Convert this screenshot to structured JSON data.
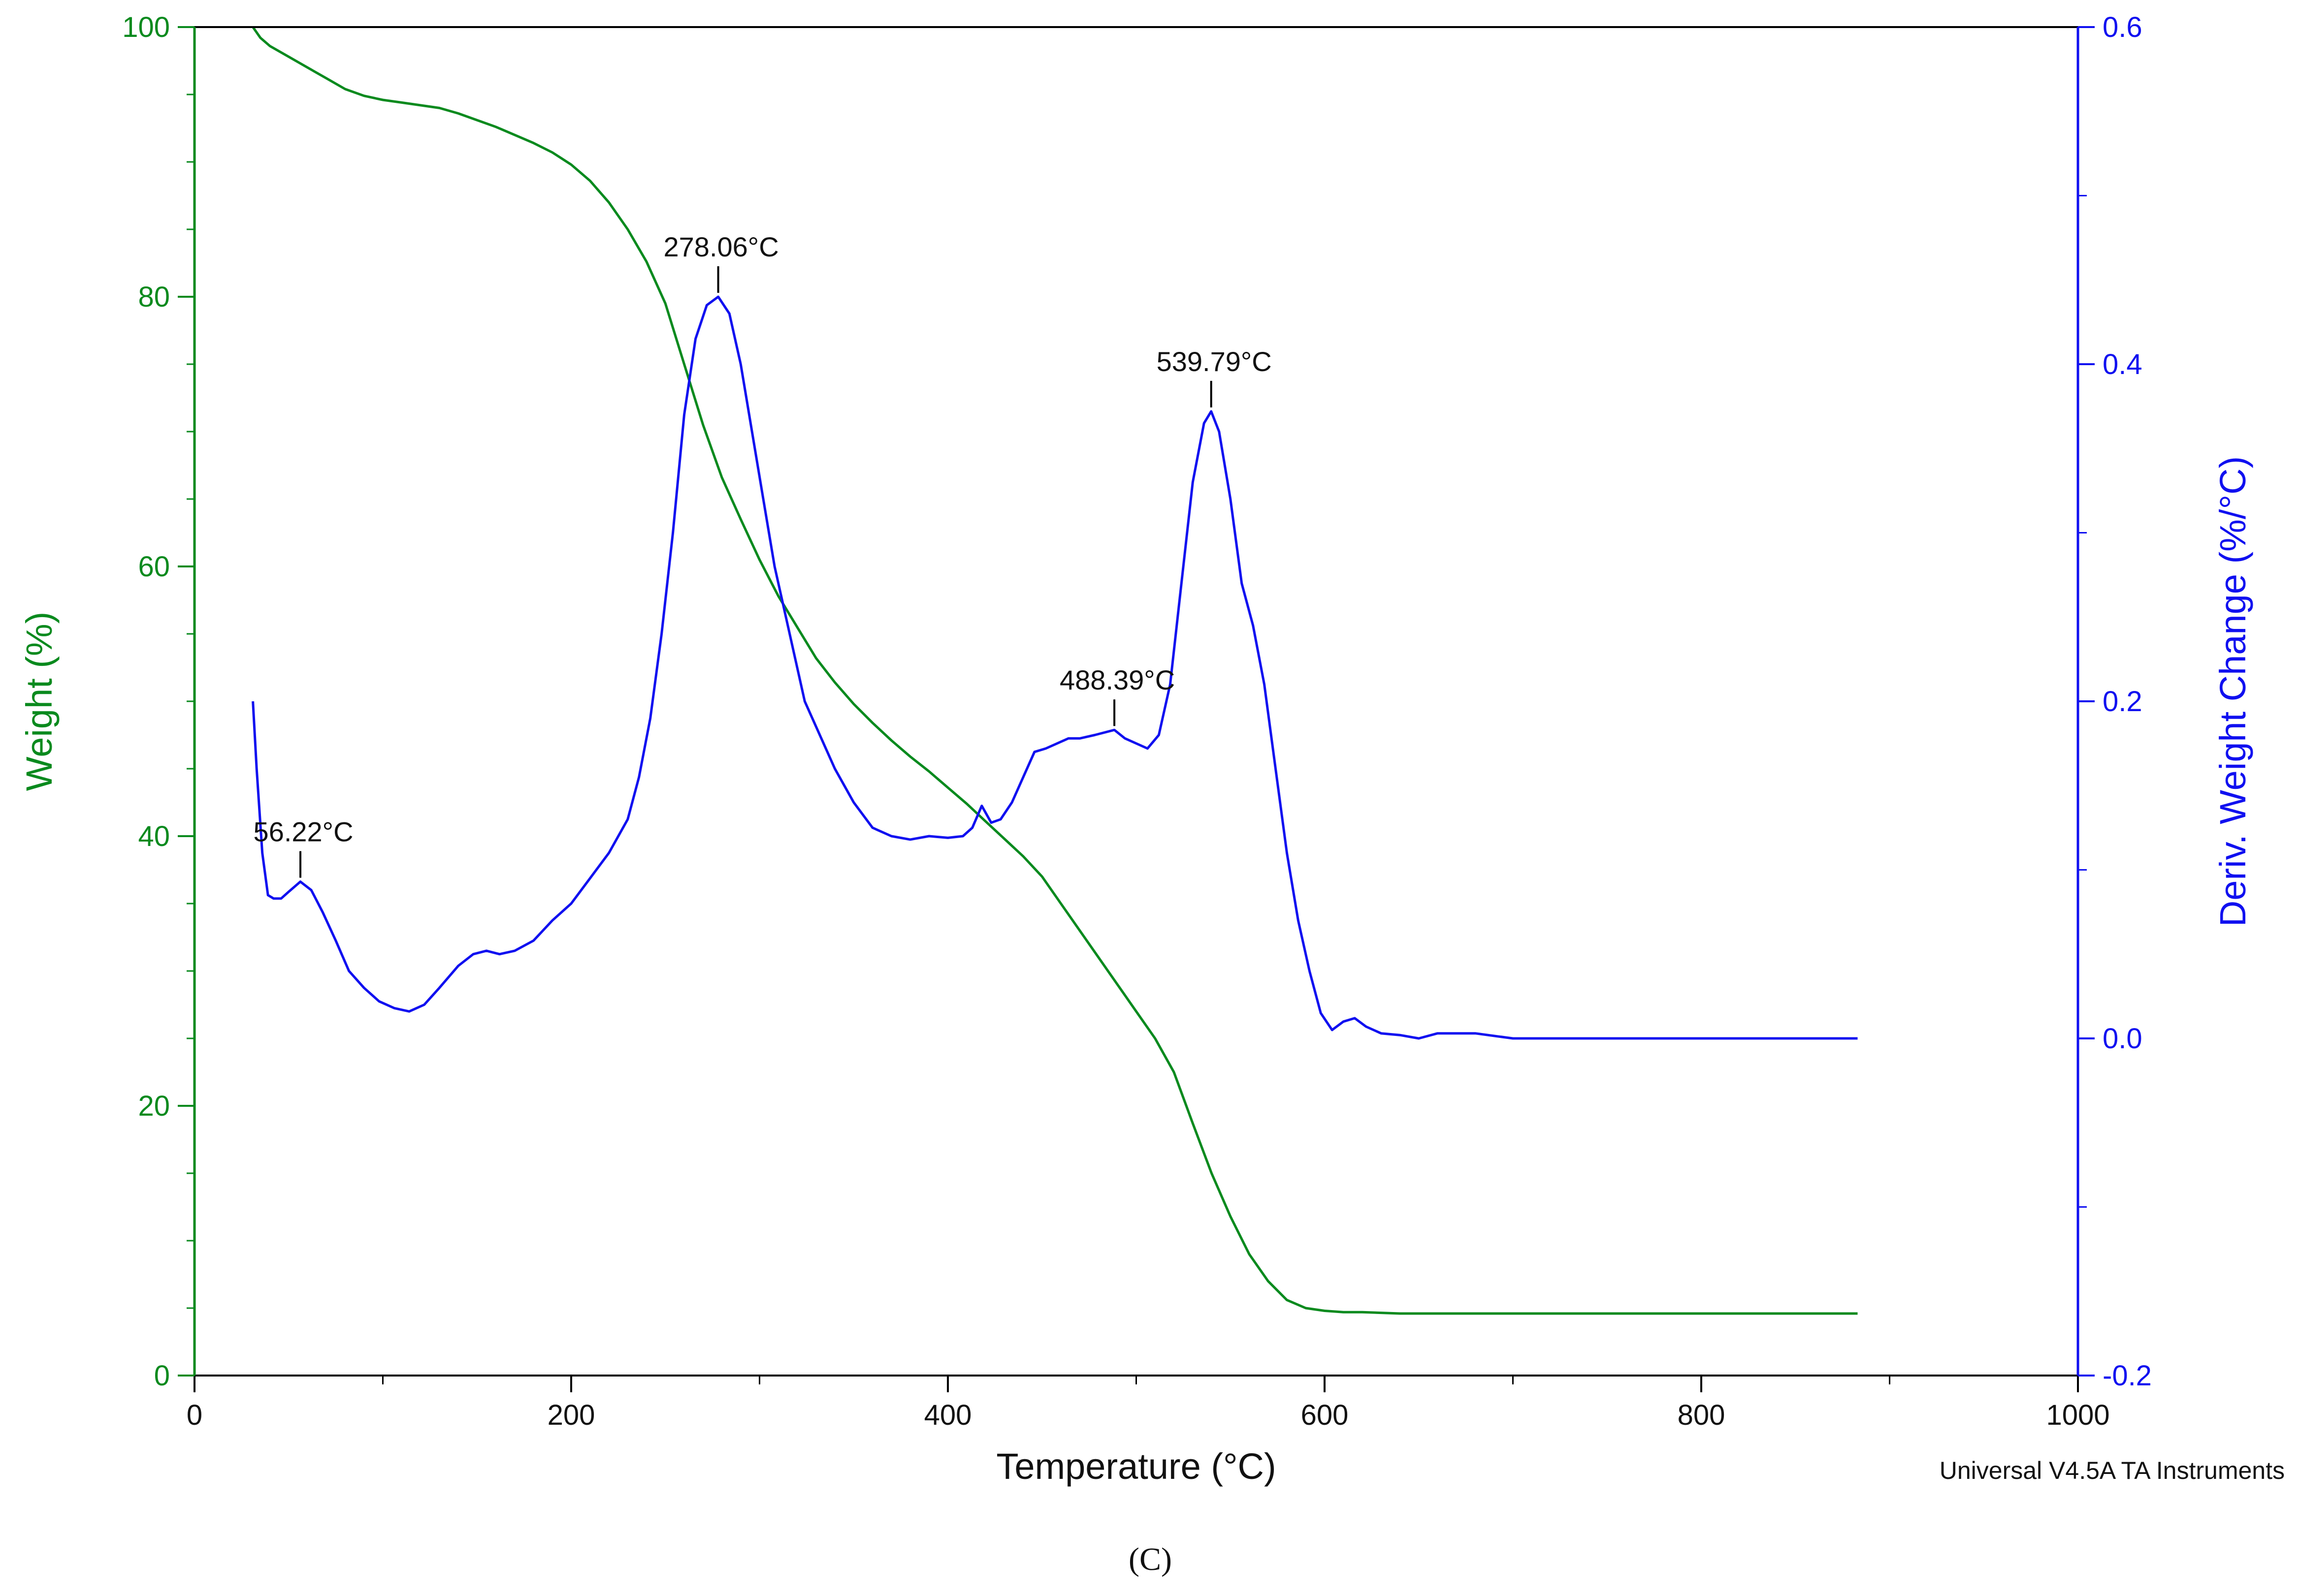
{
  "chart_data": {
    "type": "line",
    "xlabel": "Temperature (°C)",
    "ylabel_left": "Weight (%)",
    "ylabel_right": "Deriv. Weight Change (%/°C)",
    "xlim": [
      0,
      1000
    ],
    "ylim_left": [
      0,
      100
    ],
    "ylim_right": [
      -0.2,
      0.6
    ],
    "x_ticks": [
      0,
      200,
      400,
      600,
      800,
      1000
    ],
    "x_tick_labels": [
      "0",
      "200",
      "400",
      "600",
      "800",
      "1000"
    ],
    "y_left_ticks": [
      0,
      20,
      40,
      60,
      80,
      100
    ],
    "y_left_tick_labels": [
      "0",
      "20",
      "40",
      "60",
      "80",
      "100"
    ],
    "y_right_ticks": [
      -0.2,
      0.0,
      0.2,
      0.4,
      0.6
    ],
    "y_right_tick_labels": [
      "-0.2",
      "0.0",
      "0.2",
      "0.4",
      "0.6"
    ],
    "grid": false,
    "colors": {
      "weight": "#0a8a1e",
      "deriv": "#1010f0",
      "axis_left": "#0a8a1e",
      "axis_right": "#1010f0",
      "text": "#111111"
    },
    "series": [
      {
        "name": "Weight",
        "axis": "left",
        "color": "#0a8a1e",
        "x": [
          31,
          35,
          40,
          50,
          60,
          70,
          80,
          90,
          100,
          110,
          120,
          130,
          140,
          150,
          160,
          170,
          180,
          190,
          200,
          210,
          220,
          230,
          240,
          250,
          260,
          270,
          280,
          290,
          300,
          310,
          320,
          330,
          340,
          350,
          360,
          370,
          380,
          390,
          400,
          410,
          420,
          430,
          440,
          450,
          460,
          470,
          480,
          490,
          500,
          510,
          520,
          530,
          540,
          550,
          560,
          570,
          580,
          590,
          600,
          610,
          620,
          640,
          660,
          700,
          750,
          800,
          850,
          883
        ],
        "y": [
          100,
          99.2,
          98.6,
          97.8,
          97.0,
          96.2,
          95.4,
          94.9,
          94.6,
          94.4,
          94.2,
          94.0,
          93.6,
          93.1,
          92.6,
          92.0,
          91.4,
          90.7,
          89.8,
          88.6,
          87.0,
          85.0,
          82.6,
          79.5,
          75.0,
          70.5,
          66.6,
          63.5,
          60.5,
          57.8,
          55.5,
          53.2,
          51.4,
          49.8,
          48.4,
          47.1,
          45.9,
          44.8,
          43.6,
          42.4,
          41.1,
          39.8,
          38.5,
          37.0,
          35.0,
          33.0,
          31.0,
          29.0,
          27.0,
          25.0,
          22.5,
          18.7,
          15.0,
          11.8,
          9.0,
          7.0,
          5.6,
          5.0,
          4.8,
          4.7,
          4.7,
          4.6,
          4.6,
          4.6,
          4.6,
          4.6,
          4.6,
          4.6
        ]
      },
      {
        "name": "Deriv. Weight Change",
        "axis": "right",
        "color": "#1010f0",
        "x": [
          31,
          33,
          36,
          39,
          42,
          46,
          50,
          56.22,
          62,
          68,
          75,
          82,
          90,
          98,
          106,
          114,
          122,
          130,
          140,
          148,
          155,
          162,
          170,
          180,
          190,
          200,
          210,
          220,
          230,
          236,
          242,
          248,
          254,
          260,
          266,
          272,
          278.06,
          284,
          290,
          296,
          302,
          308,
          316,
          324,
          332,
          340,
          350,
          360,
          370,
          380,
          390,
          400,
          408,
          413,
          418,
          423,
          428,
          434,
          440,
          446,
          452,
          458,
          464,
          470,
          478,
          488.39,
          494,
          500,
          506,
          512,
          518,
          524,
          530,
          536,
          539.79,
          544,
          550,
          556,
          562,
          568,
          574,
          580,
          586,
          592,
          598,
          604,
          610,
          616,
          622,
          630,
          640,
          650,
          660,
          680,
          700,
          720,
          750,
          800,
          850,
          883
        ],
        "y": [
          0.2,
          0.16,
          0.11,
          0.085,
          0.083,
          0.083,
          0.087,
          0.093,
          0.088,
          0.075,
          0.058,
          0.04,
          0.03,
          0.022,
          0.018,
          0.016,
          0.02,
          0.03,
          0.043,
          0.05,
          0.052,
          0.05,
          0.052,
          0.058,
          0.07,
          0.08,
          0.095,
          0.11,
          0.13,
          0.155,
          0.19,
          0.24,
          0.3,
          0.37,
          0.415,
          0.435,
          0.44,
          0.43,
          0.4,
          0.36,
          0.32,
          0.28,
          0.24,
          0.2,
          0.18,
          0.16,
          0.14,
          0.125,
          0.12,
          0.118,
          0.12,
          0.119,
          0.12,
          0.125,
          0.138,
          0.128,
          0.13,
          0.14,
          0.155,
          0.17,
          0.172,
          0.175,
          0.178,
          0.178,
          0.18,
          0.183,
          0.178,
          0.175,
          0.172,
          0.18,
          0.21,
          0.27,
          0.33,
          0.365,
          0.372,
          0.36,
          0.32,
          0.27,
          0.245,
          0.21,
          0.16,
          0.11,
          0.07,
          0.04,
          0.015,
          0.005,
          0.01,
          0.012,
          0.007,
          0.003,
          0.002,
          0.0,
          0.003,
          0.003,
          0.0,
          0.0,
          0.0,
          0.0,
          0.0,
          0.0
        ]
      }
    ],
    "annotations": [
      {
        "text": "56.22°C",
        "x": 56.22,
        "y": 0.093,
        "axis": "right"
      },
      {
        "text": "278.06°C",
        "x": 278.06,
        "y": 0.44,
        "axis": "right"
      },
      {
        "text": "488.39°C",
        "x": 488.39,
        "y": 0.183,
        "axis": "right"
      },
      {
        "text": "539.79°C",
        "x": 539.79,
        "y": 0.372,
        "axis": "right"
      }
    ],
    "footer_note": "Universal V4.5A TA Instruments",
    "caption": "(C)"
  }
}
